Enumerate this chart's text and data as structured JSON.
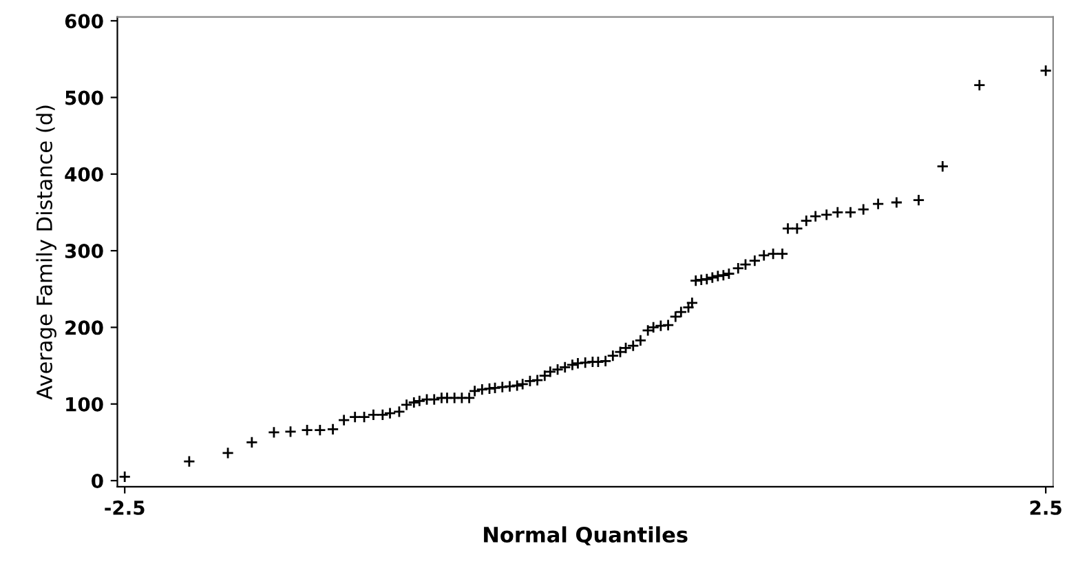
{
  "chart_data": {
    "type": "scatter",
    "xlabel": "Normal Quantiles",
    "ylabel": "Average Family Distance (d)",
    "xlim": [
      -2.54,
      2.54
    ],
    "xticks": [
      -2.5,
      2.5
    ],
    "ylim": [
      -8,
      605
    ],
    "yticks": [
      0,
      100,
      200,
      300,
      400,
      500,
      600
    ],
    "grid": false,
    "marker": "cross",
    "series": [
      {
        "color": "#000000",
        "x": [
          -2.5,
          -2.15,
          -1.94,
          -1.81,
          -1.69,
          -1.6,
          -1.51,
          -1.44,
          -1.37,
          -1.31,
          -1.25,
          -1.2,
          -1.15,
          -1.1,
          -1.06,
          -1.01,
          -0.97,
          -0.93,
          -0.9,
          -0.86,
          -0.82,
          -0.78,
          -0.75,
          -0.71,
          -0.67,
          -0.63,
          -0.6,
          -0.56,
          -0.52,
          -0.49,
          -0.45,
          -0.41,
          -0.37,
          -0.34,
          -0.3,
          -0.26,
          -0.22,
          -0.19,
          -0.15,
          -0.11,
          -0.07,
          -0.04,
          0.0,
          0.04,
          0.07,
          0.11,
          0.15,
          0.19,
          0.22,
          0.26,
          0.3,
          0.34,
          0.37,
          0.41,
          0.45,
          0.49,
          0.52,
          0.56,
          0.58,
          0.6,
          0.63,
          0.66,
          0.69,
          0.72,
          0.75,
          0.78,
          0.83,
          0.87,
          0.92,
          0.97,
          1.02,
          1.07,
          1.1,
          1.15,
          1.2,
          1.25,
          1.31,
          1.37,
          1.44,
          1.51,
          1.59,
          1.69,
          1.81,
          1.94,
          2.14,
          2.5
        ],
        "values": [
          5,
          25,
          36,
          50,
          63,
          64,
          66,
          66,
          67,
          79,
          83,
          83,
          86,
          86,
          88,
          90,
          99,
          102,
          104,
          106,
          106,
          108,
          108,
          108,
          108,
          108,
          117,
          119,
          120,
          121,
          122,
          123,
          124,
          126,
          130,
          131,
          137,
          142,
          145,
          148,
          151,
          153,
          154,
          155,
          155,
          156,
          163,
          168,
          173,
          176,
          183,
          196,
          200,
          202,
          203,
          214,
          220,
          226,
          232,
          261,
          262,
          263,
          265,
          267,
          268,
          270,
          277,
          282,
          287,
          294,
          296,
          296,
          329,
          329,
          339,
          345,
          347,
          350,
          350,
          354,
          361,
          363,
          366,
          410,
          516,
          535
        ]
      }
    ]
  }
}
